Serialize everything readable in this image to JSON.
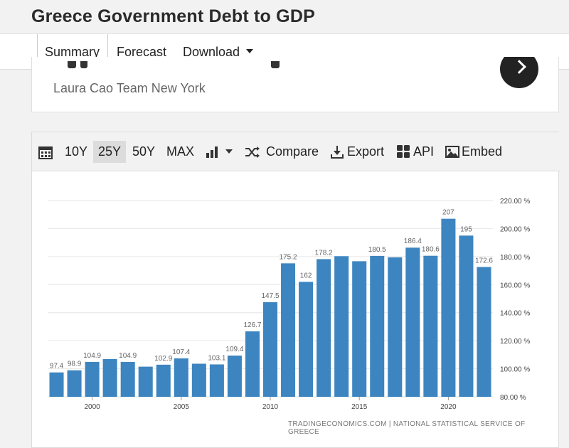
{
  "page": {
    "title": "Greece Government Debt to GDP"
  },
  "tabs": [
    {
      "label": "Summary",
      "active": true
    },
    {
      "label": "Forecast",
      "active": false
    },
    {
      "label": "Download",
      "active": false
    }
  ],
  "news": {
    "author": "Laura Cao Team New York"
  },
  "toolbar": {
    "range_10y": "10Y",
    "range_25y": "25Y",
    "range_50y": "50Y",
    "range_max": "MAX",
    "selected_range": "25Y",
    "compare": "Compare",
    "export": "Export",
    "api": "API",
    "embed": "Embed"
  },
  "colors": {
    "bar": "#3d85c0",
    "grid": "#e6e6e6",
    "label": "#666666"
  },
  "chart_data": {
    "type": "bar",
    "categories": [
      "1998",
      "1999",
      "2000",
      "2001",
      "2002",
      "2003",
      "2004",
      "2005",
      "2006",
      "2007",
      "2008",
      "2009",
      "2010",
      "2011",
      "2012",
      "2013",
      "2014",
      "2015",
      "2016",
      "2017",
      "2018",
      "2019",
      "2020",
      "2021",
      "2022"
    ],
    "values": [
      97.4,
      98.9,
      104.9,
      106.9,
      104.9,
      101.5,
      102.9,
      107.4,
      103.6,
      103.1,
      109.4,
      126.7,
      147.5,
      175.2,
      162,
      178.2,
      180.3,
      176.7,
      180.5,
      179.5,
      186.4,
      180.6,
      207,
      195,
      172.6
    ],
    "data_labels": [
      "97.4",
      "98.9",
      "104.9",
      "",
      "104.9",
      "",
      "102.9",
      "107.4",
      "",
      "103.1",
      "109.4",
      "126.7",
      "147.5",
      "175.2",
      "162",
      "178.2",
      "",
      "",
      "180.5",
      "",
      "186.4",
      "180.6",
      "207",
      "195",
      "172.6"
    ],
    "x_tick_labels": [
      "2000",
      "2005",
      "2010",
      "2015",
      "2020"
    ],
    "y_tick_labels": [
      "80.00 %",
      "100.00 %",
      "120.00 %",
      "140.00 %",
      "160.00 %",
      "180.00 %",
      "200.00 %",
      "220.00 %"
    ],
    "ylim": [
      80,
      220
    ],
    "y_axis_side": "right",
    "grid": true,
    "source": "TRADINGECONOMICS.COM | NATIONAL STATISTICAL SERVICE OF GREECE"
  }
}
